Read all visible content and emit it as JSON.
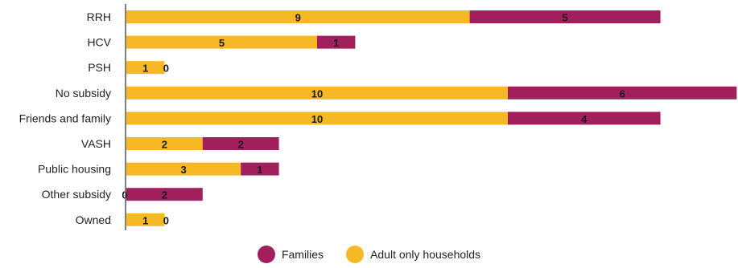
{
  "chart_data": {
    "type": "bar",
    "orientation": "horizontal",
    "stacked": true,
    "categories": [
      "RRH",
      "HCV",
      "PSH",
      "No subsidy",
      "Friends and family",
      "VASH",
      "Public housing",
      "Other subsidy",
      "Owned"
    ],
    "series": [
      {
        "name": "Adult only households",
        "color": "#F6B825",
        "values": [
          9,
          5,
          1,
          10,
          10,
          2,
          3,
          0,
          1
        ]
      },
      {
        "name": "Families",
        "color": "#A21F5E",
        "values": [
          5,
          1,
          0,
          6,
          4,
          2,
          1,
          2,
          0
        ]
      }
    ],
    "xlim": [
      0,
      16
    ],
    "grid": false,
    "legend_position": "bottom",
    "legend_order": [
      "Families",
      "Adult only households"
    ]
  }
}
